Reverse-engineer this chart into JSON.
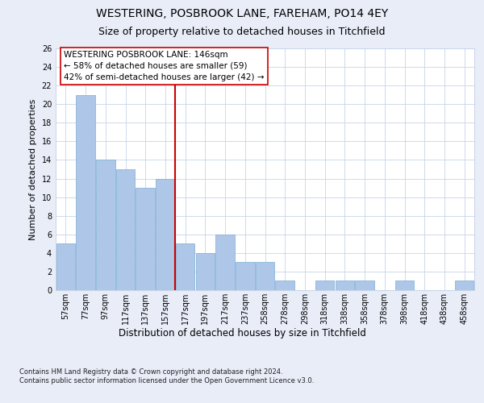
{
  "title1": "WESTERING, POSBROOK LANE, FAREHAM, PO14 4EY",
  "title2": "Size of property relative to detached houses in Titchfield",
  "xlabel": "Distribution of detached houses by size in Titchfield",
  "ylabel": "Number of detached properties",
  "footer": "Contains HM Land Registry data © Crown copyright and database right 2024.\nContains public sector information licensed under the Open Government Licence v3.0.",
  "categories": [
    "57sqm",
    "77sqm",
    "97sqm",
    "117sqm",
    "137sqm",
    "157sqm",
    "177sqm",
    "197sqm",
    "217sqm",
    "237sqm",
    "258sqm",
    "278sqm",
    "298sqm",
    "318sqm",
    "338sqm",
    "358sqm",
    "378sqm",
    "398sqm",
    "418sqm",
    "438sqm",
    "458sqm"
  ],
  "values": [
    5,
    21,
    14,
    13,
    11,
    12,
    5,
    4,
    6,
    3,
    3,
    1,
    0,
    1,
    1,
    1,
    0,
    1,
    0,
    0,
    1
  ],
  "bar_color": "#aec6e8",
  "bar_edge_color": "#7aafd4",
  "vline_x": 5.5,
  "vline_color": "#cc0000",
  "annotation_box_text": "WESTERING POSBROOK LANE: 146sqm\n← 58% of detached houses are smaller (59)\n42% of semi-detached houses are larger (42) →",
  "ylim": [
    0,
    26
  ],
  "yticks": [
    0,
    2,
    4,
    6,
    8,
    10,
    12,
    14,
    16,
    18,
    20,
    22,
    24,
    26
  ],
  "background_color": "#e8edf8",
  "plot_background": "#ffffff",
  "grid_color": "#c8d4e8",
  "title1_fontsize": 10,
  "title2_fontsize": 9,
  "xlabel_fontsize": 8.5,
  "ylabel_fontsize": 8,
  "tick_fontsize": 7,
  "annotation_fontsize": 7.5,
  "footer_fontsize": 6
}
